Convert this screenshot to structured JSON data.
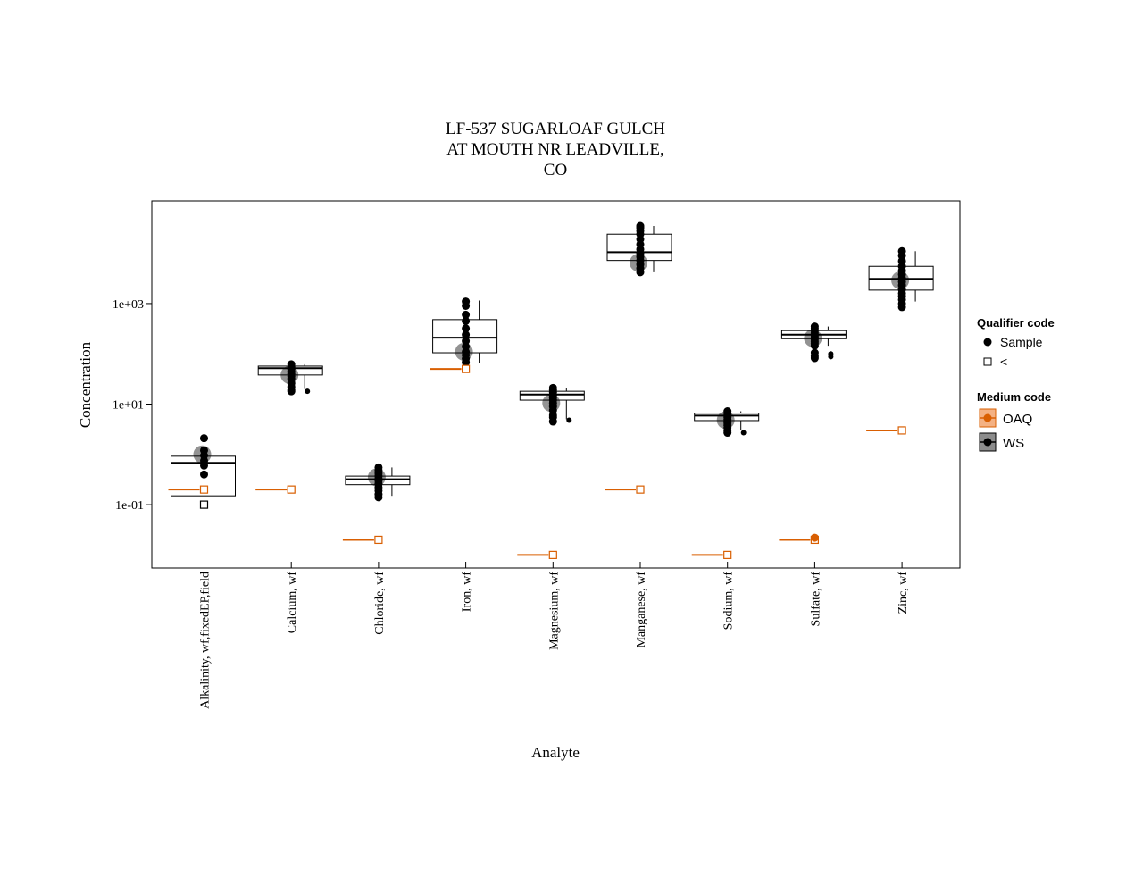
{
  "chart_data": {
    "type": "boxplot",
    "title_lines": [
      "LF-537 SUGARLOAF GULCH",
      "AT MOUTH NR LEADVILLE,",
      "CO"
    ],
    "xlabel": "Analyte",
    "ylabel": "Concentration",
    "y_scale": "log10",
    "ylim": [
      0.0055,
      110000
    ],
    "y_ticks": [
      {
        "value": 0.1,
        "label": "1e-01"
      },
      {
        "value": 10,
        "label": "1e+01"
      },
      {
        "value": 1000,
        "label": "1e+03"
      }
    ],
    "categories": [
      "Alkalinity, wf,fixedEP,field",
      "Calcium, wf",
      "Chloride, wf",
      "Iron, wf",
      "Magnesium, wf",
      "Manganese, wf",
      "Sodium, wf",
      "Sulfate, wf",
      "Zinc, wf"
    ],
    "colors": {
      "WS": "#000000",
      "OAQ": "#d95f02",
      "median_marker": "#808080"
    },
    "boxes": [
      {
        "q1": 0.15,
        "median": 0.68,
        "q3": 0.92,
        "whisker_low": 0.15,
        "whisker_high": 0.92
      },
      {
        "q1": 38,
        "median": 52,
        "q3": 57,
        "whisker_low": 20,
        "whisker_high": 62
      },
      {
        "q1": 0.25,
        "median": 0.32,
        "q3": 0.37,
        "whisker_low": 0.15,
        "whisker_high": 0.55
      },
      {
        "q1": 105,
        "median": 210,
        "q3": 480,
        "whisker_low": 65,
        "whisker_high": 1150
      },
      {
        "q1": 12,
        "median": 15.5,
        "q3": 18,
        "whisker_low": 5,
        "whisker_high": 21
      },
      {
        "q1": 7200,
        "median": 10500,
        "q3": 24000,
        "whisker_low": 4200,
        "whisker_high": 35000
      },
      {
        "q1": 4.7,
        "median": 5.9,
        "q3": 6.6,
        "whisker_low": 3.0,
        "whisker_high": 7.2
      },
      {
        "q1": 200,
        "median": 240,
        "q3": 290,
        "whisker_low": 145,
        "whisker_high": 350
      },
      {
        "q1": 1850,
        "median": 3100,
        "q3": 5500,
        "whisker_low": 1100,
        "whisker_high": 11000
      }
    ],
    "points": [
      {
        "category": 0,
        "medium": "WS",
        "qualifier": "Sample",
        "values": [
          2.1,
          1.2,
          0.95,
          0.75,
          0.6,
          0.4
        ]
      },
      {
        "category": 0,
        "medium": "WS",
        "qualifier": "<",
        "values": [
          0.1
        ]
      },
      {
        "category": 1,
        "medium": "WS",
        "qualifier": "Sample",
        "values": [
          62,
          55,
          50,
          45,
          40,
          36,
          32,
          26,
          22,
          19,
          18
        ]
      },
      {
        "category": 1,
        "medium": "WS",
        "qualifier": "Sample",
        "offset": 1,
        "values": [
          18
        ]
      },
      {
        "category": 2,
        "medium": "WS",
        "qualifier": "Sample",
        "values": [
          0.55,
          0.48,
          0.42,
          0.37,
          0.33,
          0.3,
          0.26,
          0.22,
          0.19,
          0.16,
          0.14
        ]
      },
      {
        "category": 3,
        "medium": "WS",
        "qualifier": "Sample",
        "values": [
          1100,
          900,
          600,
          450,
          320,
          240,
          180,
          140,
          110,
          95,
          80,
          68
        ]
      },
      {
        "category": 4,
        "medium": "WS",
        "qualifier": "Sample",
        "values": [
          21,
          19,
          17,
          15,
          13.5,
          12,
          10.5,
          9,
          7.5,
          6,
          5.5,
          4.5
        ]
      },
      {
        "category": 4,
        "medium": "WS",
        "qualifier": "Sample",
        "offset": 1,
        "values": [
          4.8
        ]
      },
      {
        "category": 5,
        "medium": "WS",
        "qualifier": "Sample",
        "values": [
          35000,
          32000,
          28000,
          24000,
          19000,
          15000,
          12000,
          10000,
          8500,
          7200,
          6000,
          5000,
          4200
        ]
      },
      {
        "category": 6,
        "medium": "WS",
        "qualifier": "Sample",
        "values": [
          7.2,
          6.6,
          6.0,
          5.5,
          5.0,
          4.6,
          4.2,
          3.8,
          3.4,
          3.0,
          2.7
        ]
      },
      {
        "category": 6,
        "medium": "WS",
        "qualifier": "Sample",
        "offset": 1,
        "values": [
          2.7
        ]
      },
      {
        "category": 7,
        "medium": "WS",
        "qualifier": "Sample",
        "values": [
          350,
          320,
          290,
          260,
          235,
          215,
          195,
          175,
          160,
          145,
          105,
          90,
          82
        ]
      },
      {
        "category": 7,
        "medium": "WS",
        "qualifier": "Sample",
        "offset": 1,
        "values": [
          100,
          88
        ]
      },
      {
        "category": 8,
        "medium": "WS",
        "qualifier": "Sample",
        "values": [
          11000,
          9000,
          7000,
          5500,
          4500,
          3800,
          3200,
          2700,
          2300,
          1900,
          1600,
          1400,
          1200,
          1000,
          850
        ]
      },
      {
        "category": 0,
        "medium": "OAQ",
        "qualifier": "<",
        "values": [
          0.2
        ]
      },
      {
        "category": 1,
        "medium": "OAQ",
        "qualifier": "<",
        "values": [
          0.2
        ]
      },
      {
        "category": 2,
        "medium": "OAQ",
        "qualifier": "<",
        "values": [
          0.02
        ]
      },
      {
        "category": 3,
        "medium": "OAQ",
        "qualifier": "<",
        "values": [
          50
        ]
      },
      {
        "category": 4,
        "medium": "OAQ",
        "qualifier": "<",
        "values": [
          0.01
        ]
      },
      {
        "category": 5,
        "medium": "OAQ",
        "qualifier": "<",
        "values": [
          0.2
        ]
      },
      {
        "category": 6,
        "medium": "OAQ",
        "qualifier": "<",
        "values": [
          0.01
        ]
      },
      {
        "category": 7,
        "medium": "OAQ",
        "qualifier": "<",
        "values": [
          0.02
        ]
      },
      {
        "category": 7,
        "medium": "OAQ",
        "qualifier": "Sample",
        "values": [
          0.022
        ]
      },
      {
        "category": 8,
        "medium": "OAQ",
        "qualifier": "<",
        "values": [
          3
        ]
      }
    ],
    "median_markers": [
      {
        "category": 0,
        "value": 1.0
      },
      {
        "category": 1,
        "value": 38
      },
      {
        "category": 2,
        "value": 0.35
      },
      {
        "category": 3,
        "value": 110
      },
      {
        "category": 4,
        "value": 10.5
      },
      {
        "category": 5,
        "value": 6500
      },
      {
        "category": 6,
        "value": 4.8
      },
      {
        "category": 7,
        "value": 205
      },
      {
        "category": 8,
        "value": 2900
      }
    ],
    "legend": {
      "placement": "right",
      "qualifier": {
        "title": "Qualifier code",
        "items": [
          "Sample",
          "<"
        ]
      },
      "medium": {
        "title": "Medium code",
        "items": [
          "OAQ",
          "WS"
        ]
      }
    }
  }
}
